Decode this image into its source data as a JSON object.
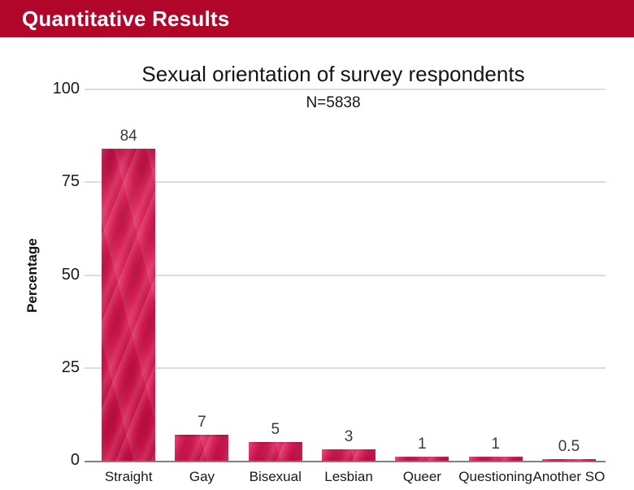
{
  "header": {
    "title": "Quantitative Results",
    "bg_color": "#B1062A",
    "text_color": "#FFFFFF"
  },
  "chart_data": {
    "type": "bar",
    "title": "Sexual orientation of survey respondents",
    "subtitle": "N=5838",
    "xlabel": "",
    "ylabel": "Percentage",
    "categories": [
      "Straight",
      "Gay",
      "Bisexual",
      "Lesbian",
      "Queer",
      "Questioning",
      "Another SO"
    ],
    "values": [
      84,
      7,
      5,
      3,
      1,
      1,
      0.5
    ],
    "value_labels": [
      "84",
      "7",
      "5",
      "3",
      "1",
      "1",
      "0.5"
    ],
    "yticks": [
      0,
      25,
      50,
      75,
      100
    ],
    "ytick_labels": [
      "0",
      "25",
      "50",
      "75",
      "100"
    ],
    "ylim": [
      0,
      100
    ],
    "grid": "horizontal",
    "legend": "none",
    "bar_color": "#D4164F",
    "gridline_color": "#DCDCDC",
    "axis_color": "#808080"
  }
}
